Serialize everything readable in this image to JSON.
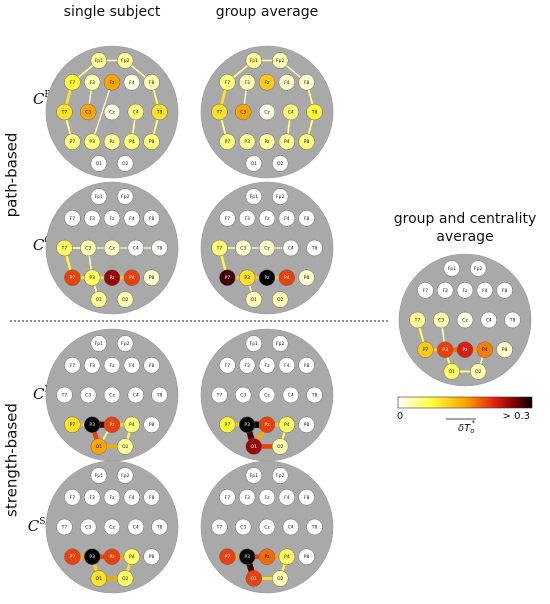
{
  "headers": [
    "single subject",
    "group average"
  ],
  "groups": [
    "path-based",
    "strength-based"
  ],
  "rows": [
    {
      "base": "C",
      "sup": "B"
    },
    {
      "base": "C",
      "sup": "C"
    },
    {
      "base": "C",
      "sup": "E"
    },
    {
      "base": "C",
      "sup": "S/N"
    }
  ],
  "average_title": [
    "group and centrality",
    "average"
  ],
  "colorbar": {
    "min_label": "0",
    "max_label": "> 0.3",
    "label": {
      "base": "δT",
      "sub": "o",
      "sup": "*"
    }
  },
  "electrodes": [
    "Fp1",
    "Fp2",
    "F7",
    "F3",
    "Fz",
    "F4",
    "F8",
    "T7",
    "C3",
    "Cz",
    "C4",
    "T8",
    "P7",
    "P3",
    "Pz",
    "P4",
    "P8",
    "O1",
    "O2"
  ],
  "panels": [
    {
      "node_values": [
        0.04,
        0.04,
        0.08,
        0.03,
        0.15,
        0.01,
        0.03,
        0.1,
        0.15,
        0.01,
        0.05,
        0.1,
        0.05,
        0.05,
        0.04,
        0.05,
        0.05,
        0,
        0
      ],
      "edges": [
        {
          "from": "F7",
          "to": "T7",
          "value": 0.1
        },
        {
          "from": "F7",
          "to": "Fp1",
          "value": 0.04
        },
        {
          "from": "Fp1",
          "to": "Fp2",
          "value": 0.03
        },
        {
          "from": "Fp2",
          "to": "F8",
          "value": 0.03
        },
        {
          "from": "F8",
          "to": "T8",
          "value": 0.05
        },
        {
          "from": "T8",
          "to": "P8",
          "value": 0.05
        },
        {
          "from": "T7",
          "to": "P7",
          "value": 0.05
        },
        {
          "from": "F3",
          "to": "C3",
          "value": 0.02
        },
        {
          "from": "C4",
          "to": "P4",
          "value": 0.04
        },
        {
          "from": "Fz",
          "to": "P3",
          "value": 0.02
        }
      ]
    },
    {
      "node_values": [
        0.04,
        0.03,
        0.05,
        0.03,
        0.12,
        0.02,
        0.02,
        0.1,
        0.15,
        0.01,
        0.05,
        0.08,
        0.05,
        0.04,
        0.04,
        0.04,
        0.05,
        0,
        0
      ],
      "edges": [
        {
          "from": "F7",
          "to": "T7",
          "value": 0.1
        },
        {
          "from": "F7",
          "to": "Fp1",
          "value": 0.04
        },
        {
          "from": "Fp1",
          "to": "Fp2",
          "value": 0.03
        },
        {
          "from": "Fp2",
          "to": "F8",
          "value": 0.02
        },
        {
          "from": "F8",
          "to": "T8",
          "value": 0.05
        },
        {
          "from": "T8",
          "to": "P8",
          "value": 0.05
        },
        {
          "from": "T7",
          "to": "P7",
          "value": 0.05
        },
        {
          "from": "F3",
          "to": "C3",
          "value": 0.02
        },
        {
          "from": "C4",
          "to": "P4",
          "value": 0.04
        }
      ]
    },
    {
      "node_values": [
        0,
        0,
        0,
        0,
        0,
        0,
        0,
        0.06,
        0.03,
        0.02,
        0,
        0,
        0.2,
        0.06,
        0.25,
        0.2,
        0.02,
        0.04,
        0.03
      ],
      "edges": [
        {
          "from": "T7",
          "to": "P7",
          "value": 0.08
        },
        {
          "from": "P7",
          "to": "P3",
          "value": 0.1
        },
        {
          "from": "P3",
          "to": "Pz",
          "value": 0.1
        },
        {
          "from": "Pz",
          "to": "P4",
          "value": 0.12
        },
        {
          "from": "P3",
          "to": "O1",
          "value": 0.04
        },
        {
          "from": "C3",
          "to": "P3",
          "value": 0.03
        },
        {
          "from": "T7",
          "to": "C3",
          "value": 0.03
        },
        {
          "from": "C3",
          "to": "T8",
          "value": 0.02
        }
      ]
    },
    {
      "node_values": [
        0,
        0,
        0,
        0,
        0,
        0,
        0,
        0.05,
        0.02,
        0.02,
        0,
        0,
        0.28,
        0.1,
        0.3,
        0.2,
        0.02,
        0.03,
        0.03
      ],
      "edges": [
        {
          "from": "T7",
          "to": "P7",
          "value": 0.08
        },
        {
          "from": "P7",
          "to": "P3",
          "value": 0.12
        },
        {
          "from": "P3",
          "to": "Pz",
          "value": 0.12
        },
        {
          "from": "Pz",
          "to": "P4",
          "value": 0.12
        },
        {
          "from": "P3",
          "to": "O1",
          "value": 0.03
        },
        {
          "from": "T7",
          "to": "C3",
          "value": 0.03
        },
        {
          "from": "C3",
          "to": "C4",
          "value": 0.02
        }
      ]
    },
    {
      "node_values": [
        0,
        0,
        0,
        0,
        0,
        0,
        0,
        0,
        0,
        0,
        0,
        0,
        0.1,
        0.3,
        0.2,
        0.05,
        0,
        0.15,
        0.04
      ],
      "edges": [
        {
          "from": "P7",
          "to": "P3",
          "value": 0.12
        },
        {
          "from": "P3",
          "to": "Pz",
          "value": 0.28
        },
        {
          "from": "Pz",
          "to": "P4",
          "value": 0.1
        },
        {
          "from": "P3",
          "to": "O1",
          "value": 0.2
        },
        {
          "from": "O1",
          "to": "O2",
          "value": 0.15
        },
        {
          "from": "P4",
          "to": "O2",
          "value": 0.08
        },
        {
          "from": "Pz",
          "to": "O1",
          "value": 0.05
        }
      ]
    },
    {
      "node_values": [
        0,
        0,
        0,
        0,
        0,
        0,
        0,
        0,
        0,
        0,
        0,
        0,
        0.08,
        0.3,
        0.2,
        0.06,
        0,
        0.25,
        0.03
      ],
      "edges": [
        {
          "from": "P7",
          "to": "P3",
          "value": 0.12
        },
        {
          "from": "P3",
          "to": "Pz",
          "value": 0.3
        },
        {
          "from": "Pz",
          "to": "P4",
          "value": 0.12
        },
        {
          "from": "P3",
          "to": "O1",
          "value": 0.28
        },
        {
          "from": "O1",
          "to": "O2",
          "value": 0.2
        },
        {
          "from": "P4",
          "to": "O2",
          "value": 0.06
        },
        {
          "from": "Pz",
          "to": "O1",
          "value": 0.15
        }
      ]
    },
    {
      "node_values": [
        0,
        0,
        0,
        0,
        0,
        0,
        0,
        0,
        0,
        0,
        0,
        0,
        0.2,
        0.3,
        0.2,
        0.06,
        0,
        0.1,
        0.06
      ],
      "edges": [
        {
          "from": "P7",
          "to": "P3",
          "value": 0.15
        },
        {
          "from": "P3",
          "to": "Pz",
          "value": 0.2
        },
        {
          "from": "Pz",
          "to": "P4",
          "value": 0.15
        },
        {
          "from": "P3",
          "to": "O1",
          "value": 0.12
        },
        {
          "from": "O1",
          "to": "O2",
          "value": 0.15
        },
        {
          "from": "P4",
          "to": "O2",
          "value": 0.1
        }
      ]
    },
    {
      "node_values": [
        0,
        0,
        0,
        0,
        0,
        0,
        0,
        0,
        0,
        0,
        0,
        0,
        0.2,
        0.3,
        0.18,
        0.06,
        0,
        0.2,
        0.03
      ],
      "edges": [
        {
          "from": "P7",
          "to": "P3",
          "value": 0.15
        },
        {
          "from": "P3",
          "to": "Pz",
          "value": 0.2
        },
        {
          "from": "Pz",
          "to": "P4",
          "value": 0.15
        },
        {
          "from": "P3",
          "to": "O1",
          "value": 0.28
        },
        {
          "from": "O1",
          "to": "O2",
          "value": 0.1
        },
        {
          "from": "P4",
          "to": "O2",
          "value": 0.08
        }
      ]
    },
    {
      "node_values": [
        0,
        0,
        0,
        0,
        0,
        0,
        0,
        0.04,
        0.03,
        0.01,
        0,
        0,
        0.12,
        0.2,
        0.22,
        0.17,
        0.02,
        0.06,
        0.03
      ],
      "edges": [
        {
          "from": "T7",
          "to": "P7",
          "value": 0.06
        },
        {
          "from": "P7",
          "to": "P3",
          "value": 0.12
        },
        {
          "from": "P3",
          "to": "Pz",
          "value": 0.18
        },
        {
          "from": "Pz",
          "to": "P4",
          "value": 0.15
        },
        {
          "from": "P3",
          "to": "O1",
          "value": 0.06
        },
        {
          "from": "O1",
          "to": "O2",
          "value": 0.05
        },
        {
          "from": "P4",
          "to": "O2",
          "value": 0.04
        },
        {
          "from": "C3",
          "to": "P3",
          "value": 0.03
        }
      ]
    }
  ]
}
